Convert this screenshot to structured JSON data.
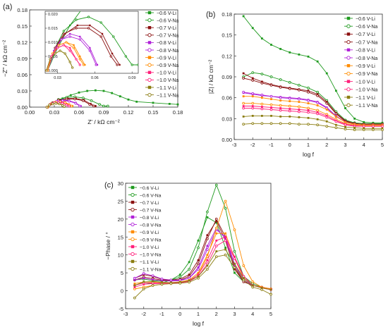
{
  "legend_labels": [
    "−0.6 V-Li",
    "−0.6 V-Na",
    "−0.7 V-Li",
    "−0.7 V-Na",
    "−0.8 V-Li",
    "−0.8 V-Na",
    "−0.9 V-Li",
    "−0.9 V-Na",
    "−1.0 V-Li",
    "−1.0 V-Na",
    "−1.1 V-Li",
    "−1.1 V-Na"
  ],
  "series_colors": [
    "#1f9a1f",
    "#1f9a1f",
    "#8b1010",
    "#8b1010",
    "#b020d8",
    "#b020d8",
    "#ff8c00",
    "#ff8c00",
    "#ff1f7a",
    "#ff1f7a",
    "#8b7d10",
    "#8b7d10"
  ],
  "series_markers": [
    "square-filled",
    "circle-open",
    "square-filled",
    "circle-open",
    "square-filled",
    "circle-open",
    "square-filled",
    "circle-open",
    "square-filled",
    "circle-open",
    "square-filled",
    "circle-open"
  ],
  "chart_data": [
    {
      "panel_label": "(a)",
      "type": "scatter",
      "xlabel": "Z' / kΩ cm⁻²",
      "ylabel": "−Z'' / kΩ cm⁻²",
      "xlim": [
        0.0,
        0.18
      ],
      "ylim": [
        0.0,
        0.18
      ],
      "xticks": [
        "0.00",
        "0.03",
        "0.06",
        "0.09",
        "0.12",
        "0.15",
        "0.18"
      ],
      "yticks": [
        "0.00",
        "0.03",
        "0.06",
        "0.09",
        "0.12",
        "0.15",
        "0.18"
      ],
      "legend_position": "right",
      "series": [
        {
          "x": [
            0.022,
            0.03,
            0.04,
            0.05,
            0.06,
            0.07,
            0.08,
            0.09,
            0.1,
            0.11,
            0.12,
            0.13,
            0.15,
            0.17,
            0.18
          ],
          "y": [
            0.0,
            0.008,
            0.016,
            0.022,
            0.027,
            0.03,
            0.031,
            0.03,
            0.026,
            0.02,
            0.014,
            0.01,
            0.008,
            0.006,
            0.005
          ]
        },
        {
          "x": [
            0.022,
            0.028,
            0.035,
            0.045,
            0.055,
            0.065,
            0.075,
            0.085,
            0.09,
            0.095
          ],
          "y": [
            0.0,
            0.008,
            0.014,
            0.018,
            0.019,
            0.017,
            0.012,
            0.005,
            0.002,
            0.002
          ]
        },
        {
          "x": [
            0.022,
            0.028,
            0.036,
            0.046,
            0.056,
            0.066,
            0.074,
            0.08
          ],
          "y": [
            0.0,
            0.008,
            0.013,
            0.016,
            0.016,
            0.013,
            0.006,
            0.002
          ]
        },
        {
          "x": [
            0.022,
            0.028,
            0.035,
            0.045,
            0.055,
            0.065,
            0.073,
            0.078
          ],
          "y": [
            0.0,
            0.008,
            0.013,
            0.015,
            0.015,
            0.012,
            0.005,
            0.002
          ]
        },
        {
          "x": [
            0.022,
            0.027,
            0.033,
            0.04,
            0.048,
            0.056,
            0.062
          ],
          "y": [
            0.0,
            0.007,
            0.011,
            0.013,
            0.012,
            0.008,
            0.002
          ]
        },
        {
          "x": [
            0.022,
            0.027,
            0.033,
            0.04,
            0.048,
            0.056,
            0.061
          ],
          "y": [
            0.0,
            0.006,
            0.011,
            0.012,
            0.011,
            0.007,
            0.002
          ]
        },
        {
          "x": [
            0.022,
            0.026,
            0.031,
            0.037,
            0.043,
            0.048,
            0.052
          ],
          "y": [
            0.0,
            0.006,
            0.009,
            0.01,
            0.009,
            0.005,
            0.002
          ]
        },
        {
          "x": [
            0.022,
            0.026,
            0.031,
            0.037,
            0.043,
            0.048,
            0.051
          ],
          "y": [
            0.0,
            0.006,
            0.009,
            0.01,
            0.008,
            0.004,
            0.002
          ]
        },
        {
          "x": [
            0.021,
            0.025,
            0.03,
            0.035,
            0.04,
            0.045,
            0.048
          ],
          "y": [
            0.0,
            0.005,
            0.008,
            0.009,
            0.008,
            0.004,
            0.002
          ]
        },
        {
          "x": [
            0.021,
            0.025,
            0.03,
            0.035,
            0.04,
            0.045,
            0.048
          ],
          "y": [
            0.0,
            0.005,
            0.008,
            0.009,
            0.007,
            0.004,
            0.002
          ]
        },
        {
          "x": [
            0.021,
            0.024,
            0.028,
            0.032,
            0.036,
            0.04,
            0.042
          ],
          "y": [
            0.0,
            0.004,
            0.006,
            0.007,
            0.006,
            0.003,
            0.001
          ]
        },
        {
          "x": [
            0.021,
            0.024,
            0.028,
            0.032,
            0.036,
            0.04,
            0.042
          ],
          "y": [
            0.0,
            0.004,
            0.006,
            0.007,
            0.006,
            0.003,
            0.001
          ]
        }
      ],
      "inset": {
        "xlim": [
          0.02,
          0.095
        ],
        "ylim": [
          -0.001,
          0.021
        ],
        "xticks": [
          "0.03",
          "0.06",
          "0.09"
        ],
        "yticks": [
          "0.000",
          "0.005",
          "0.010",
          "0.015",
          "0.020"
        ]
      }
    },
    {
      "panel_label": "(b)",
      "type": "line",
      "xlabel": "log f",
      "ylabel": "|Z| / kΩ cm⁻²",
      "xlim": [
        -3,
        5
      ],
      "ylim": [
        0.0,
        0.18
      ],
      "xticks": [
        "-3",
        "-2",
        "-1",
        "0",
        "1",
        "2",
        "3",
        "4",
        "5"
      ],
      "yticks": [
        "0.00",
        "0.03",
        "0.06",
        "0.09",
        "0.12",
        "0.15",
        "0.18"
      ],
      "legend_position": "top-right",
      "x": [
        -2.5,
        -2.0,
        -1.5,
        -1.0,
        -0.5,
        0.0,
        0.5,
        1.0,
        1.5,
        2.0,
        2.5,
        3.0,
        3.5,
        4.0,
        4.5,
        5.0
      ],
      "series": [
        {
          "values": [
            0.177,
            0.16,
            0.145,
            0.136,
            0.13,
            0.125,
            0.122,
            0.119,
            0.112,
            0.095,
            0.07,
            0.045,
            0.03,
            0.025,
            0.024,
            0.024
          ]
        },
        {
          "values": [
            0.09,
            0.096,
            0.094,
            0.09,
            0.086,
            0.082,
            0.078,
            0.074,
            0.068,
            0.056,
            0.04,
            0.028,
            0.024,
            0.023,
            0.023,
            0.023
          ]
        },
        {
          "values": [
            0.095,
            0.088,
            0.083,
            0.079,
            0.076,
            0.074,
            0.072,
            0.07,
            0.065,
            0.054,
            0.038,
            0.027,
            0.023,
            0.022,
            0.022,
            0.022
          ]
        },
        {
          "values": [
            0.088,
            0.085,
            0.081,
            0.078,
            0.075,
            0.073,
            0.071,
            0.068,
            0.063,
            0.052,
            0.037,
            0.026,
            0.023,
            0.022,
            0.022,
            0.022
          ]
        },
        {
          "values": [
            0.067,
            0.065,
            0.063,
            0.062,
            0.061,
            0.06,
            0.059,
            0.057,
            0.054,
            0.046,
            0.034,
            0.025,
            0.022,
            0.021,
            0.021,
            0.021
          ]
        },
        {
          "values": [
            0.068,
            0.066,
            0.064,
            0.062,
            0.06,
            0.059,
            0.058,
            0.056,
            0.053,
            0.045,
            0.033,
            0.025,
            0.022,
            0.021,
            0.021,
            0.021
          ]
        },
        {
          "values": [
            0.062,
            0.062,
            0.06,
            0.058,
            0.056,
            0.055,
            0.054,
            0.052,
            0.049,
            0.043,
            0.033,
            0.025,
            0.022,
            0.021,
            0.021,
            0.021
          ]
        },
        {
          "values": [
            0.052,
            0.052,
            0.051,
            0.05,
            0.049,
            0.048,
            0.047,
            0.045,
            0.042,
            0.036,
            0.029,
            0.023,
            0.021,
            0.02,
            0.02,
            0.02
          ]
        },
        {
          "values": [
            0.048,
            0.048,
            0.047,
            0.046,
            0.045,
            0.044,
            0.043,
            0.042,
            0.039,
            0.034,
            0.027,
            0.022,
            0.02,
            0.019,
            0.019,
            0.019
          ]
        },
        {
          "values": [
            0.045,
            0.045,
            0.044,
            0.043,
            0.042,
            0.041,
            0.04,
            0.039,
            0.037,
            0.032,
            0.026,
            0.021,
            0.019,
            0.019,
            0.019,
            0.019
          ]
        },
        {
          "values": [
            0.033,
            0.034,
            0.034,
            0.034,
            0.033,
            0.033,
            0.032,
            0.031,
            0.029,
            0.026,
            0.021,
            0.018,
            0.017,
            0.016,
            0.016,
            0.016
          ]
        },
        {
          "values": [
            0.022,
            0.023,
            0.023,
            0.023,
            0.023,
            0.023,
            0.022,
            0.022,
            0.021,
            0.019,
            0.017,
            0.015,
            0.014,
            0.014,
            0.014,
            0.014
          ]
        }
      ]
    },
    {
      "panel_label": "(c)",
      "type": "line",
      "xlabel": "log f",
      "ylabel": "−Phase / °",
      "xlim": [
        -3,
        5
      ],
      "ylim": [
        -5,
        30
      ],
      "xticks": [
        "-3",
        "-2",
        "-1",
        "0",
        "1",
        "2",
        "3",
        "4",
        "5"
      ],
      "yticks": [
        "-5",
        "0",
        "5",
        "10",
        "15",
        "20",
        "25",
        "30"
      ],
      "legend_position": "top-left",
      "x": [
        -2.5,
        -2.0,
        -1.5,
        -1.0,
        -0.5,
        0.0,
        0.5,
        1.0,
        1.5,
        2.0,
        2.5,
        3.0,
        3.5,
        4.0,
        4.5,
        5.0
      ],
      "series": [
        {
          "values": [
            1.5,
            2.2,
            2.0,
            2.2,
            3.0,
            4.5,
            8.0,
            14.0,
            20.5,
            19.0,
            12.0,
            5.0,
            2.5,
            1.5,
            1.0,
            0.5
          ]
        },
        {
          "values": [
            3.0,
            3.3,
            2.8,
            2.7,
            3.0,
            3.8,
            6.0,
            12.0,
            22.0,
            29.5,
            23.0,
            11.0,
            4.0,
            2.0,
            1.0,
            0.5
          ]
        },
        {
          "values": [
            3.5,
            4.5,
            4.0,
            3.2,
            3.0,
            3.3,
            4.5,
            8.5,
            15.5,
            19.5,
            14.0,
            6.0,
            2.5,
            1.5,
            1.0,
            0.5
          ]
        },
        {
          "values": [
            3.0,
            3.8,
            3.4,
            3.0,
            2.9,
            3.0,
            4.0,
            7.5,
            14.5,
            20.0,
            15.0,
            6.5,
            2.5,
            1.5,
            1.0,
            0.5
          ]
        },
        {
          "values": [
            3.0,
            3.5,
            3.1,
            2.8,
            2.7,
            2.8,
            3.5,
            6.5,
            12.5,
            17.5,
            14.5,
            7.0,
            3.0,
            1.5,
            1.0,
            0.5
          ]
        },
        {
          "values": [
            3.5,
            4.8,
            4.2,
            3.3,
            3.0,
            3.0,
            3.5,
            6.0,
            11.5,
            17.0,
            15.0,
            7.5,
            3.0,
            1.5,
            1.0,
            0.5
          ]
        },
        {
          "values": [
            2.0,
            2.5,
            2.4,
            2.3,
            2.3,
            2.5,
            3.0,
            5.0,
            10.0,
            16.0,
            16.0,
            9.0,
            3.5,
            1.5,
            1.0,
            0.5
          ]
        },
        {
          "values": [
            0.5,
            1.0,
            1.5,
            1.8,
            2.0,
            2.2,
            2.8,
            4.5,
            9.5,
            17.5,
            25.0,
            17.0,
            7.0,
            2.5,
            1.0,
            0.5
          ]
        },
        {
          "values": [
            1.0,
            1.8,
            2.0,
            2.0,
            2.1,
            2.3,
            2.8,
            4.5,
            8.5,
            14.0,
            15.0,
            9.5,
            4.0,
            1.5,
            0.8,
            0.3
          ]
        },
        {
          "values": [
            1.5,
            2.2,
            2.2,
            2.1,
            2.1,
            2.2,
            2.6,
            4.0,
            7.5,
            12.5,
            14.0,
            9.0,
            4.0,
            1.5,
            0.8,
            0.3
          ]
        },
        {
          "values": [
            1.5,
            2.5,
            2.6,
            2.4,
            2.3,
            2.4,
            2.8,
            4.0,
            7.0,
            11.0,
            11.5,
            7.5,
            3.5,
            1.5,
            0.8,
            0.3
          ]
        },
        {
          "values": [
            -2.0,
            0.5,
            1.5,
            1.8,
            2.0,
            2.1,
            2.4,
            3.5,
            6.0,
            9.5,
            10.0,
            6.5,
            3.0,
            1.0,
            0.3,
            -1.0
          ]
        }
      ]
    }
  ]
}
